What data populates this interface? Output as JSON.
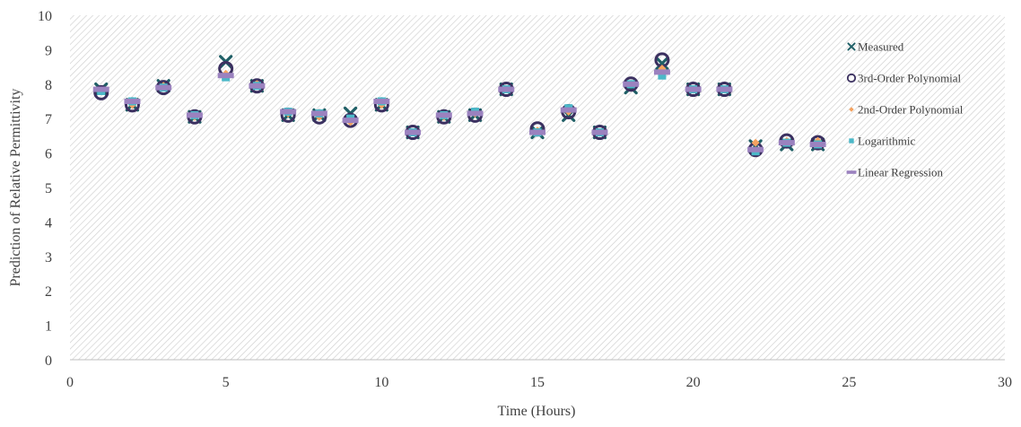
{
  "chart_data": {
    "type": "scatter",
    "title": "",
    "xlabel": "Time (Hours)",
    "ylabel": "Prediction of Relative Permittivity",
    "xlim": [
      0,
      30
    ],
    "ylim": [
      0,
      10
    ],
    "xticks": [
      0,
      5,
      10,
      15,
      20,
      25,
      30
    ],
    "yticks": [
      0,
      1,
      2,
      3,
      4,
      5,
      6,
      7,
      8,
      9,
      10
    ],
    "grid": false,
    "legend_position": "right",
    "x": [
      1,
      2,
      3,
      4,
      5,
      6,
      7,
      8,
      9,
      10,
      11,
      12,
      13,
      14,
      15,
      16,
      17,
      18,
      19,
      20,
      21,
      22,
      23,
      24
    ],
    "series": [
      {
        "name": "Measured",
        "marker": "x",
        "color": "#1f5f66",
        "values": [
          7.85,
          7.4,
          7.95,
          7.05,
          8.65,
          7.95,
          7.1,
          7.1,
          7.15,
          7.4,
          6.6,
          7.05,
          7.1,
          7.85,
          6.6,
          7.1,
          6.6,
          7.9,
          8.6,
          7.85,
          7.85,
          6.2,
          6.25,
          6.25
        ]
      },
      {
        "name": "3rd-Order Polynomial",
        "marker": "circle",
        "color": "#3b3060",
        "values": [
          7.75,
          7.4,
          7.9,
          7.05,
          8.45,
          7.95,
          7.1,
          7.05,
          6.95,
          7.4,
          6.6,
          7.05,
          7.1,
          7.85,
          6.7,
          7.2,
          6.6,
          8.0,
          8.7,
          7.85,
          7.85,
          6.1,
          6.35,
          6.3
        ]
      },
      {
        "name": "2nd-Order Polynomial",
        "marker": "diamond",
        "color": "#f5a360",
        "values": [
          7.8,
          7.4,
          7.95,
          7.05,
          8.3,
          8.0,
          7.15,
          7.05,
          6.9,
          7.4,
          6.6,
          7.05,
          7.15,
          7.85,
          6.65,
          7.2,
          6.6,
          8.0,
          8.45,
          7.85,
          7.85,
          6.3,
          6.35,
          6.35
        ]
      },
      {
        "name": "Logarithmic",
        "marker": "square",
        "color": "#4bb8c8",
        "values": [
          7.8,
          7.5,
          7.9,
          7.1,
          8.2,
          7.95,
          7.2,
          7.15,
          7.0,
          7.5,
          6.6,
          7.1,
          7.2,
          7.85,
          6.6,
          7.3,
          6.6,
          8.0,
          8.25,
          7.85,
          7.85,
          6.05,
          6.3,
          6.25
        ]
      },
      {
        "name": "Linear Regression",
        "marker": "dash",
        "color": "#9b82bf",
        "values": [
          7.85,
          7.5,
          7.9,
          7.1,
          8.25,
          7.95,
          7.2,
          7.15,
          6.95,
          7.5,
          6.6,
          7.1,
          7.15,
          7.85,
          6.6,
          7.25,
          6.6,
          8.0,
          8.35,
          7.85,
          7.85,
          6.1,
          6.3,
          6.25
        ]
      }
    ]
  }
}
